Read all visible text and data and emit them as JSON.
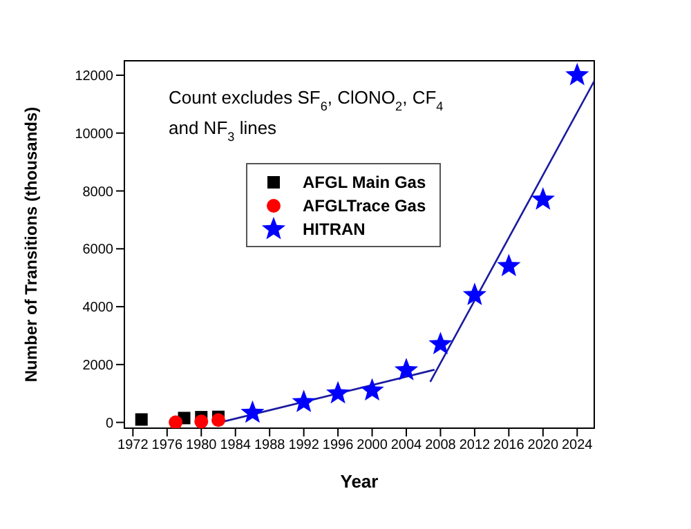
{
  "chart_data": {
    "type": "scatter",
    "xlabel": "Year",
    "ylabel": "Number of Transitions (thousands)",
    "annotations": [
      "Count excludes SF$_{6}$, ClONO$_{2}$, CF$_{4}$",
      "and NF$_{3}$ lines"
    ],
    "xlim": [
      1971,
      2026
    ],
    "xticks": [
      1972,
      1976,
      1980,
      1984,
      1988,
      1992,
      1996,
      2000,
      2004,
      2008,
      2012,
      2016,
      2020,
      2024
    ],
    "ylim": [
      -200,
      12500
    ],
    "yticks": [
      0,
      2000,
      4000,
      6000,
      8000,
      10000,
      12000
    ],
    "legend": "top left",
    "series": [
      {
        "name": "AFGL Main Gas",
        "color": "#000000",
        "marker": "square",
        "x": [
          1973,
          1978,
          1980,
          1982
        ],
        "values": [
          100,
          150,
          180,
          190
        ]
      },
      {
        "name": "AFGLTrace Gas",
        "color": "#ff0000",
        "marker": "circle",
        "x": [
          1977,
          1980,
          1982
        ],
        "values": [
          0,
          30,
          80
        ]
      },
      {
        "name": "HITRAN",
        "color": "#0000ff",
        "marker": "star",
        "x": [
          1986,
          1992,
          1996,
          2000,
          2004,
          2008,
          2012,
          2016,
          2020,
          2024
        ],
        "values": [
          330,
          700,
          1000,
          1100,
          1800,
          2700,
          4400,
          5400,
          7700,
          12000
        ]
      },
      {
        "type": "line",
        "color": "#1a1aa0",
        "marker": "none",
        "x": [
          1982.2,
          2007.3
        ],
        "values": [
          0,
          1820
        ]
      },
      {
        "type": "line",
        "color": "#1a1aa0",
        "marker": "none",
        "x": [
          2006.8,
          2026
        ],
        "values": [
          1400,
          11800
        ]
      }
    ]
  }
}
